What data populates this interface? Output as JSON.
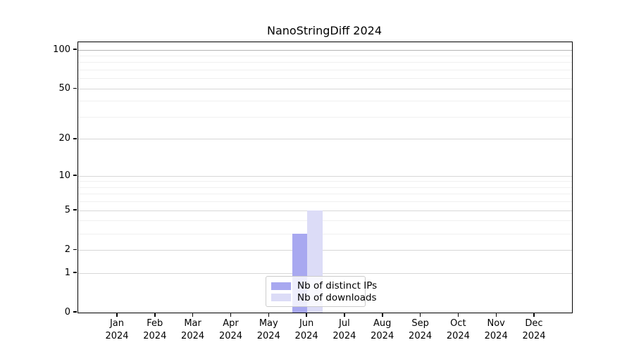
{
  "chart_data": {
    "type": "bar",
    "title": "NanoStringDiff 2024",
    "x_year": "2024",
    "categories": [
      "Jan",
      "Feb",
      "Mar",
      "Apr",
      "May",
      "Jun",
      "Jul",
      "Aug",
      "Sep",
      "Oct",
      "Nov",
      "Dec"
    ],
    "series": [
      {
        "name": "Nb of distinct IPs",
        "color": "#a8a8f0",
        "values": [
          0,
          0,
          0,
          0,
          0,
          3,
          0,
          0,
          0,
          0,
          0,
          0
        ]
      },
      {
        "name": "Nb of downloads",
        "color": "#dcdcf7",
        "values": [
          0,
          0,
          0,
          0,
          0,
          5,
          0,
          0,
          0,
          0,
          0,
          0
        ]
      }
    ],
    "yscale": "log1p",
    "ylim": [
      0,
      100
    ],
    "yticks": [
      0,
      1,
      2,
      5,
      10,
      20,
      50,
      100
    ],
    "minor_yticks": [
      3,
      4,
      6,
      7,
      8,
      9,
      30,
      40,
      60,
      70,
      80,
      90
    ],
    "grid": "on",
    "legend_position": "bottom-center-inside",
    "colors": {
      "major_grid": "#d7d7d7",
      "top_grid": "#b4b4b4",
      "minor_grid": "#f0f0f0",
      "spine": "#000000"
    }
  }
}
